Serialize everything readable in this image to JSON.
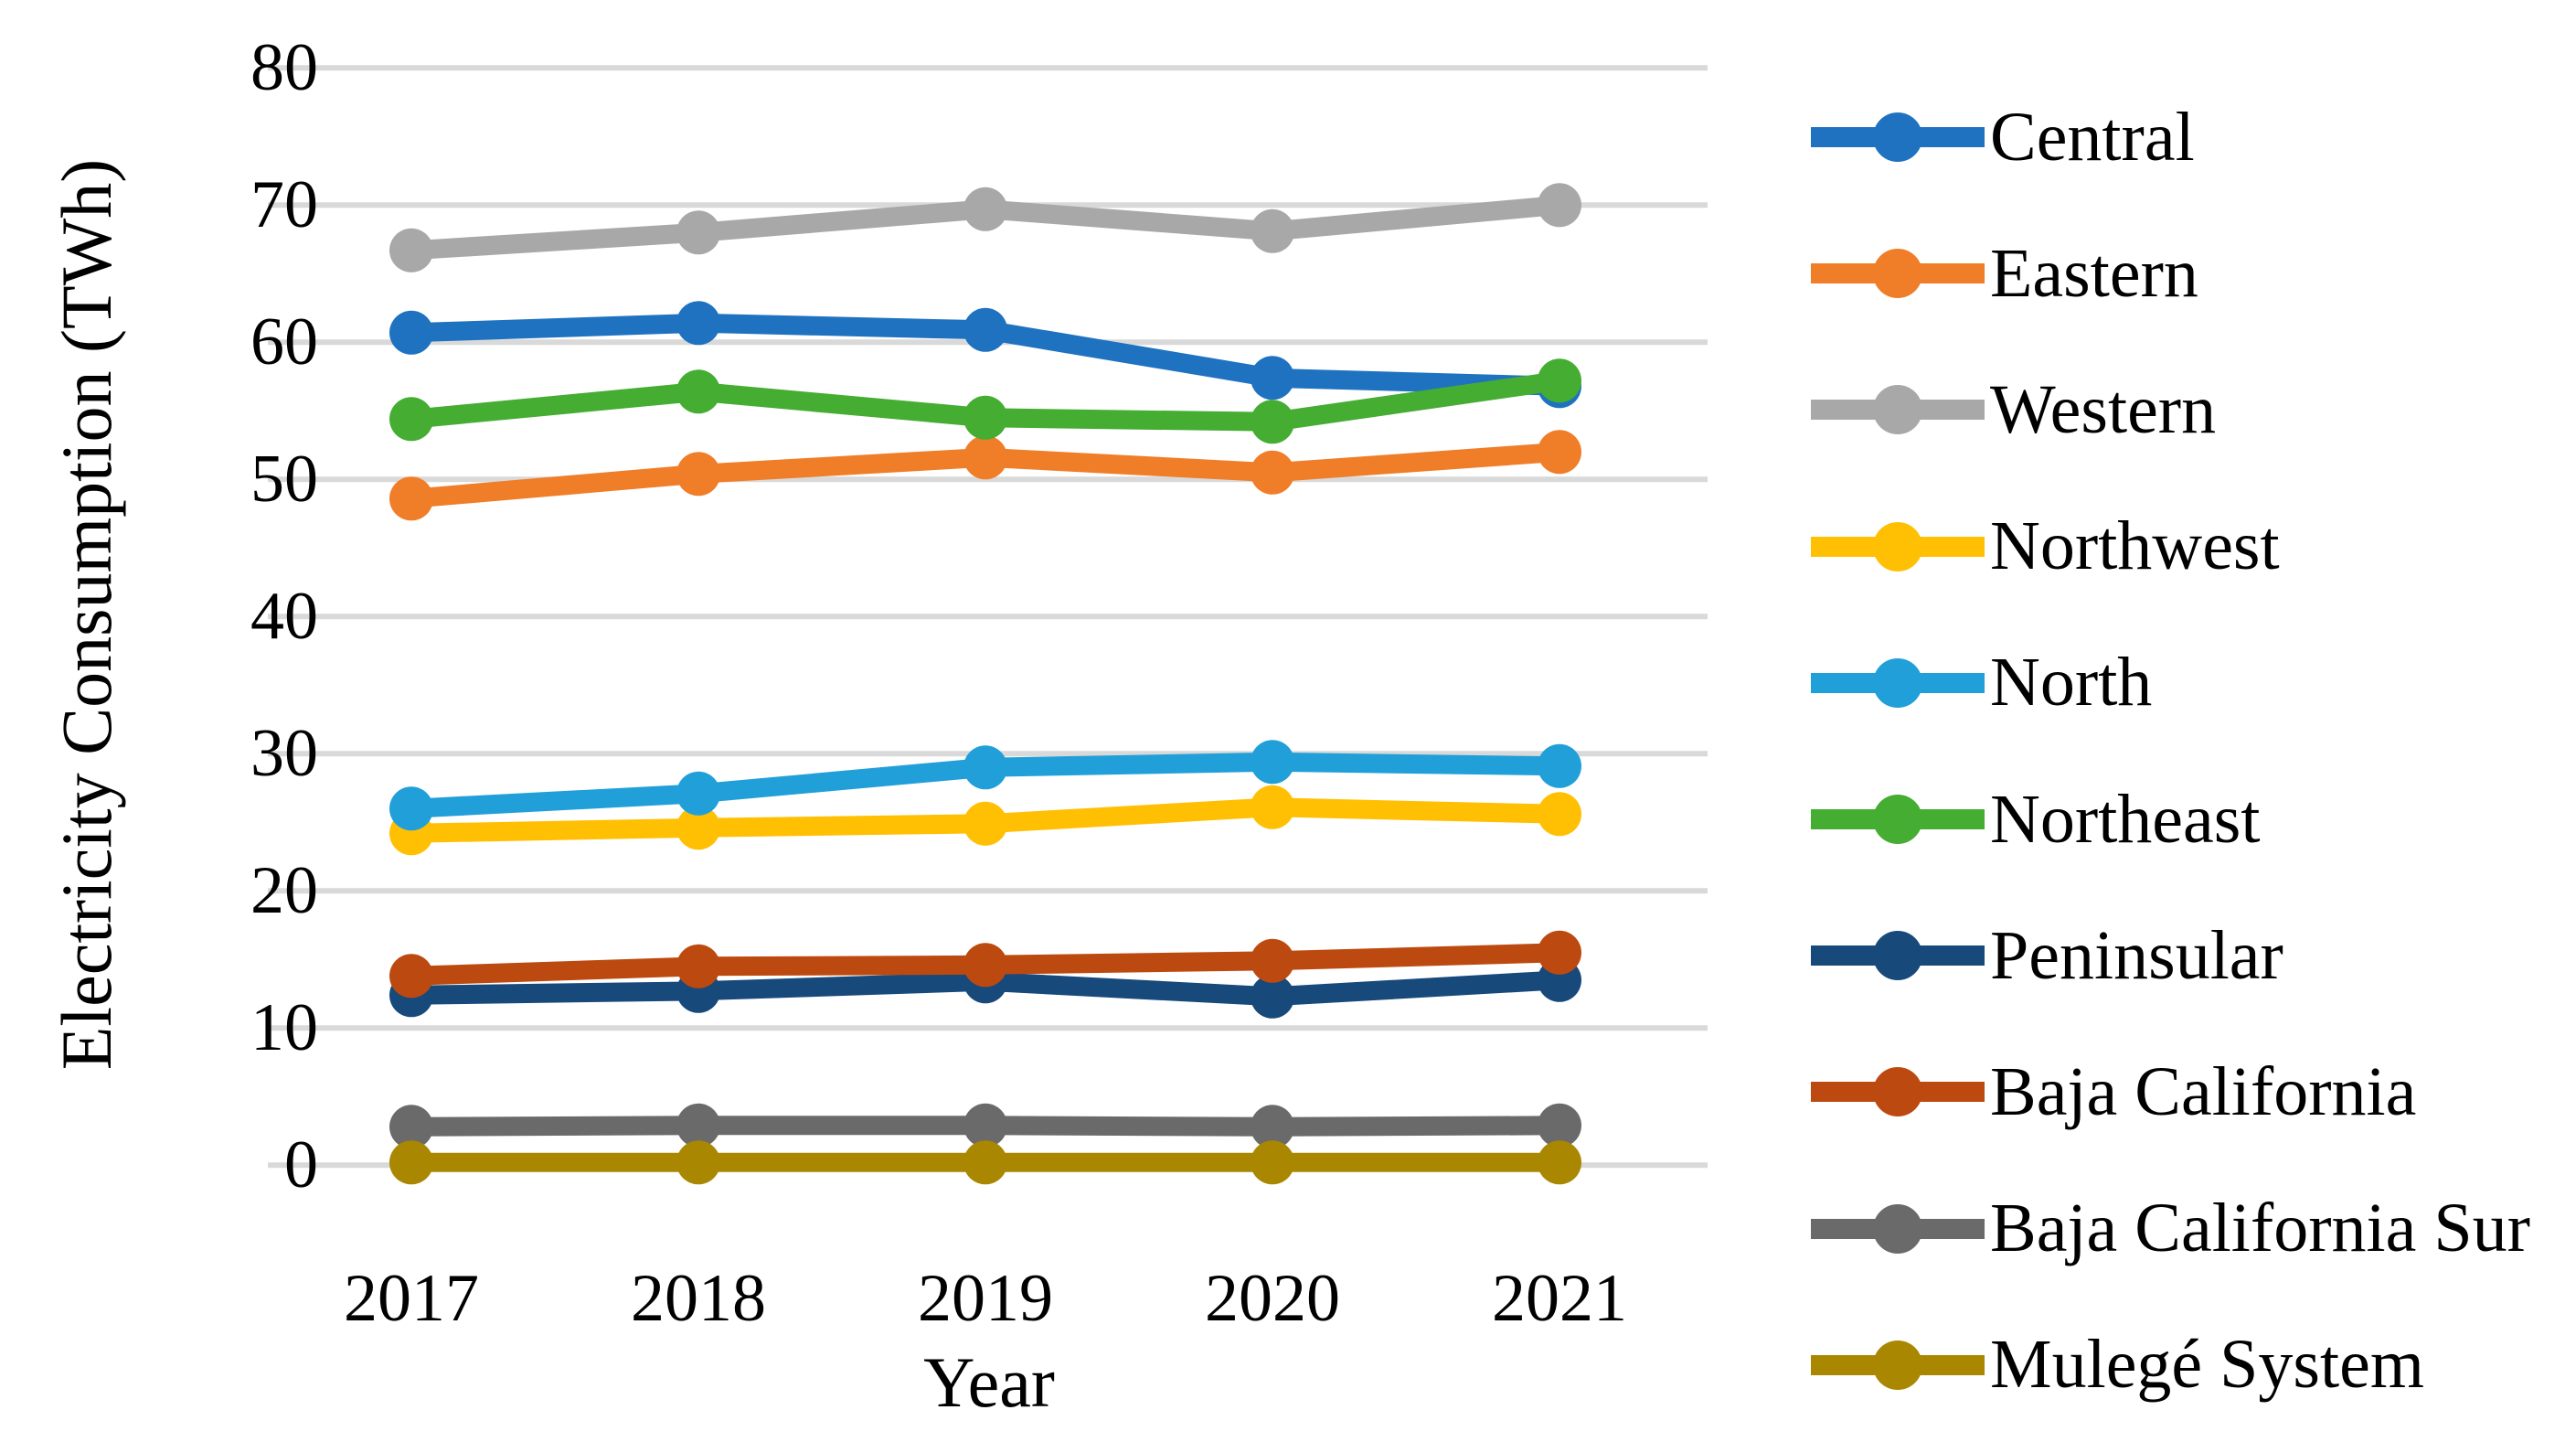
{
  "chart_data": {
    "type": "line",
    "title": "",
    "xlabel": "Year",
    "ylabel": "Electricity Consumption (TWh)",
    "categories": [
      "2017",
      "2018",
      "2019",
      "2020",
      "2021"
    ],
    "ylim": [
      0,
      80
    ],
    "yticks": [
      0,
      10,
      20,
      30,
      40,
      50,
      60,
      70,
      80
    ],
    "grid": "horizontal-gridlines-only",
    "gridline_color": "#D9D9D9",
    "background_color": "#FFFFFF",
    "text_color": "#000000",
    "legend_position": "right",
    "series": [
      {
        "name": "Central",
        "color": "#1F72C0",
        "values": [
          60.7,
          61.4,
          60.9,
          57.4,
          56.8
        ]
      },
      {
        "name": "Eastern",
        "color": "#F07D28",
        "values": [
          48.6,
          50.4,
          51.6,
          50.5,
          52.0
        ]
      },
      {
        "name": "Western",
        "color": "#A8A8A8",
        "values": [
          66.7,
          68.0,
          69.7,
          68.1,
          70.0
        ]
      },
      {
        "name": "Northwest",
        "color": "#FFC003",
        "values": [
          24.2,
          24.6,
          24.9,
          26.1,
          25.6
        ]
      },
      {
        "name": "North",
        "color": "#219FD9",
        "values": [
          26.0,
          27.1,
          29.0,
          29.4,
          29.1
        ]
      },
      {
        "name": "Northeast",
        "color": "#44AD32",
        "values": [
          54.4,
          56.4,
          54.5,
          54.2,
          57.2
        ]
      },
      {
        "name": "Peninsular",
        "color": "#17497B",
        "values": [
          12.4,
          12.7,
          13.4,
          12.3,
          13.5
        ]
      },
      {
        "name": "Baja California",
        "color": "#BC4A10",
        "values": [
          13.8,
          14.5,
          14.6,
          14.9,
          15.5
        ]
      },
      {
        "name": "Baja California Sur",
        "color": "#6A6A6A",
        "values": [
          2.8,
          2.9,
          2.9,
          2.8,
          2.9
        ]
      },
      {
        "name": "Mulegé System",
        "color": "#A98700",
        "values": [
          0.2,
          0.2,
          0.2,
          0.2,
          0.2
        ]
      }
    ]
  }
}
